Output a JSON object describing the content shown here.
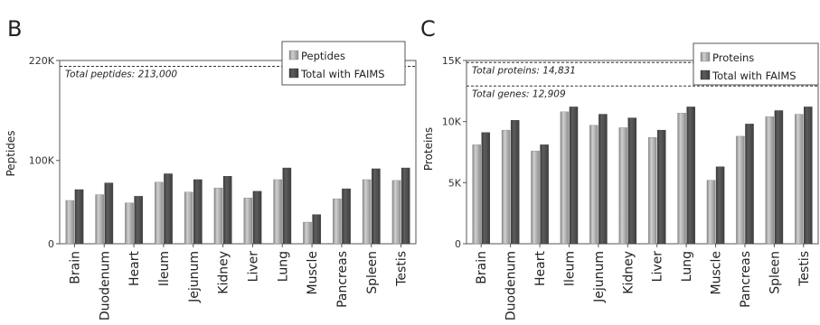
{
  "colors": {
    "light_bar": "#a6a6a6",
    "dark_bar": "#4a4a4a",
    "axis": "#555555",
    "text": "#222222"
  },
  "chart_data": [
    {
      "panel": "B",
      "type": "bar",
      "ylabel": "Peptides",
      "yticks": [
        "220K",
        "100K",
        "0"
      ],
      "ylim": [
        0,
        220000
      ],
      "categories": [
        "Brain",
        "Duodenum",
        "Heart",
        "Ileum",
        "Jejunum",
        "Kidney",
        "Liver",
        "Lung",
        "Muscle",
        "Pancreas",
        "Spleen",
        "Testis"
      ],
      "series": [
        {
          "name": "Peptides",
          "values": [
            52000,
            59000,
            49000,
            74000,
            62000,
            67000,
            55000,
            77000,
            26000,
            54000,
            77000,
            76000
          ]
        },
        {
          "name": "Total with FAIMS",
          "values": [
            65000,
            73000,
            57000,
            84000,
            77000,
            81000,
            63000,
            91000,
            35000,
            66000,
            90000,
            91000
          ]
        }
      ],
      "reference_lines": [
        {
          "value": 213000,
          "label": "Total peptides: 213,000"
        }
      ],
      "legend": "top-right",
      "grid": false
    },
    {
      "panel": "C",
      "type": "bar",
      "ylabel": "Proteins",
      "yticks": [
        "15K",
        "10K",
        "5K",
        "0"
      ],
      "ylim": [
        0,
        15500
      ],
      "categories": [
        "Brain",
        "Duodenum",
        "Heart",
        "Ileum",
        "Jejunum",
        "Kidney",
        "Liver",
        "Lung",
        "Muscle",
        "Pancreas",
        "Spleen",
        "Testis"
      ],
      "series": [
        {
          "name": "Proteins",
          "values": [
            8100,
            9300,
            7600,
            10800,
            9700,
            9500,
            8700,
            10700,
            5200,
            8800,
            10400,
            10600
          ]
        },
        {
          "name": "Total with FAIMS",
          "values": [
            9100,
            10100,
            8100,
            11200,
            10600,
            10300,
            9300,
            11200,
            6300,
            9800,
            10900,
            11200
          ]
        }
      ],
      "reference_lines": [
        {
          "value": 14831,
          "label": "Total proteins: 14,831"
        },
        {
          "value": 12909,
          "label": "Total genes: 12,909"
        }
      ],
      "legend": "top-right",
      "grid": false
    }
  ]
}
